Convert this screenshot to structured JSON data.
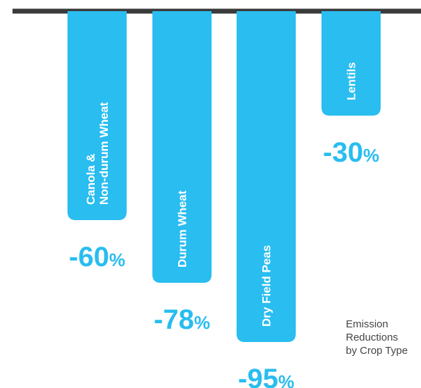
{
  "colors": {
    "bar": "#29bdf0",
    "baseline": "#3a3a3a",
    "value_text": "#29bdf0"
  },
  "caption": [
    "Emission",
    "Reductions",
    "by Crop Type"
  ],
  "chart_data": {
    "type": "bar",
    "orientation": "vertical-down",
    "categories": [
      [
        "Canola &",
        "Non-durum Wheat"
      ],
      [
        "Durum Wheat"
      ],
      [
        "Dry Field Peas"
      ],
      [
        "Lentils"
      ]
    ],
    "values": [
      -60,
      -78,
      -95,
      -30
    ],
    "value_labels": [
      {
        "num": "-60",
        "unit": "%"
      },
      {
        "num": "-78",
        "unit": "%"
      },
      {
        "num": "-95",
        "unit": "%"
      },
      {
        "num": "-30",
        "unit": "%"
      }
    ],
    "ylim": [
      -100,
      0
    ],
    "grid": false,
    "legend": "none"
  }
}
